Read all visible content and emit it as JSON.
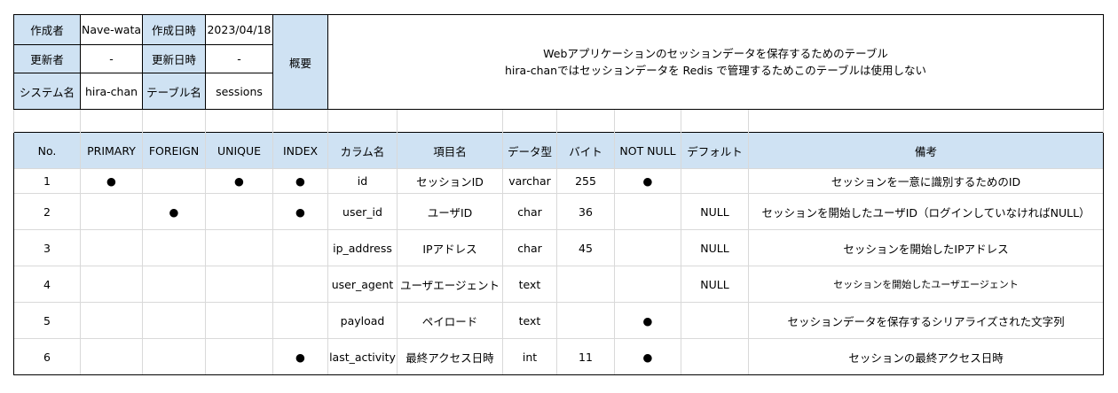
{
  "meta": {
    "author_label": "作成者",
    "author": "Nave-wata",
    "created_label": "作成日時",
    "created": "2023/04/18",
    "updater_label": "更新者",
    "updater": "-",
    "updated_label": "更新日時",
    "updated": "-",
    "system_label": "システム名",
    "system": "hira-chan",
    "table_label": "テーブル名",
    "table": "sessions",
    "summary_label": "概要",
    "summary_line1": "Webアプリケーションのセッションデータを保存するためのテーブル",
    "summary_line2": "hira-chanではセッションデータを Redis で管理するためこのテーブルは使用しない"
  },
  "columns_header": [
    "No.",
    "PRIMARY",
    "FOREIGN",
    "UNIQUE",
    "INDEX",
    "カラム名",
    "項目名",
    "データ型",
    "バイト",
    "NOT NULL",
    "デフォルト",
    "備考"
  ],
  "rows": [
    [
      "1",
      "●",
      "",
      "●",
      "●",
      "id",
      "セッションID",
      "varchar",
      "255",
      "●",
      "",
      "セッションを一意に識別するためのID"
    ],
    [
      "2",
      "",
      "●",
      "",
      "●",
      "user_id",
      "ユーザID",
      "char",
      "36",
      "",
      "NULL",
      "セッションを開始したユーザID（ログインしていなければNULL）"
    ],
    [
      "3",
      "",
      "",
      "",
      "",
      "ip_address",
      "IPアドレス",
      "char",
      "45",
      "",
      "NULL",
      "セッションを開始したIPアドレス"
    ],
    [
      "4",
      "",
      "",
      "",
      "",
      "user_agent",
      "ユーザエージェント",
      "text",
      "",
      "",
      "NULL",
      "セッションを開始したユーザエージェント"
    ],
    [
      "5",
      "",
      "",
      "",
      "",
      "payload",
      "ペイロード",
      "text",
      "",
      "●",
      "",
      "セッションデータを保存するシリアライズされた文字列"
    ],
    [
      "6",
      "",
      "",
      "",
      "●",
      "last_activity",
      "最終アクセス日時",
      "int",
      "11",
      "●",
      "",
      "セッションの最終アクセス日時"
    ]
  ]
}
